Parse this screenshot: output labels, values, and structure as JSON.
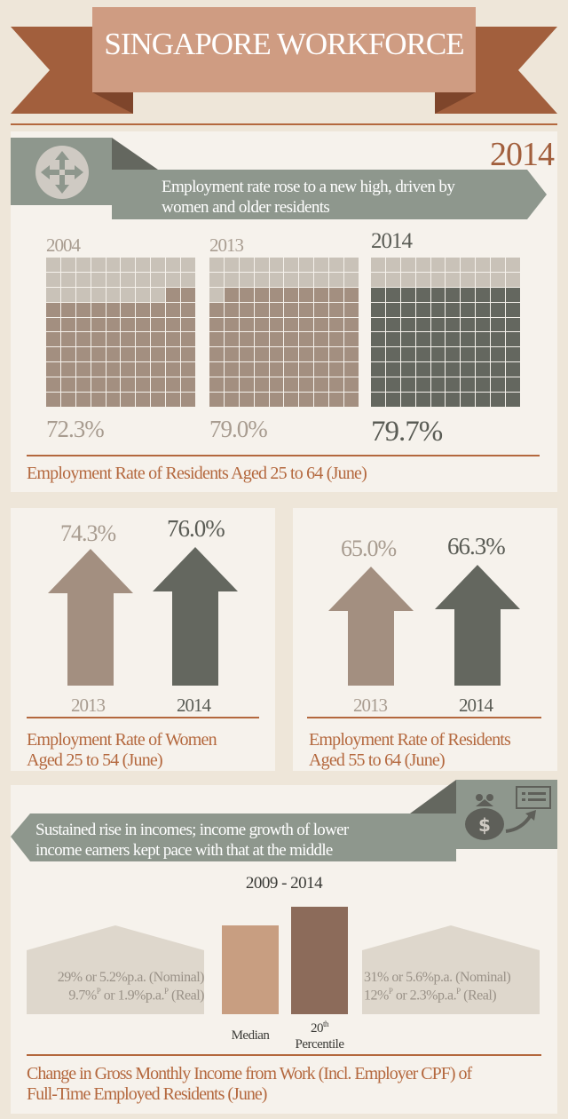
{
  "header": {
    "title": "SINGAPORE WORKFORCE",
    "year": "2014"
  },
  "colors": {
    "background": "#eee6d9",
    "panel": "#f6f2ec",
    "banner_main": "#cf9c82",
    "banner_dark": "#a25f3d",
    "rust": "#b4683e",
    "muted_brown": "#a38f80",
    "dark_gray": "#64675f",
    "sage": "#8e978d",
    "light_cell": "#c9c2b8"
  },
  "section1": {
    "icon": "arrows-move-icon",
    "headline_line1": "Employment rate rose to a new high, driven by",
    "headline_line2": "women and older residents",
    "grids": [
      {
        "year": "2004",
        "value_label": "72.3%",
        "value": 72.3
      },
      {
        "year": "2013",
        "value_label": "79.0%",
        "value": 79.0
      },
      {
        "year": "2014",
        "value_label": "79.7%",
        "value": 79.7
      }
    ],
    "caption": "Employment Rate of Residents Aged  25 to 64 (June)"
  },
  "women": {
    "bars": [
      {
        "year": "2013",
        "value_label": "74.3%",
        "value": 74.3
      },
      {
        "year": "2014",
        "value_label": "76.0%",
        "value": 76.0
      }
    ],
    "caption_line1": "Employment Rate of Women",
    "caption_line2": "Aged 25 to 54 (June)"
  },
  "older": {
    "bars": [
      {
        "year": "2013",
        "value_label": "65.0%",
        "value": 65.0
      },
      {
        "year": "2014",
        "value_label": "66.3%",
        "value": 66.3
      }
    ],
    "caption_line1": "Employment Rate of Residents",
    "caption_line2": "Aged 55 to 64 (June)"
  },
  "section2": {
    "icon": "money-bag-growth-icon",
    "headline_line1": "Sustained rise in incomes; income growth of lower",
    "headline_line2": "income earners kept pace with that at the middle",
    "period": "2009 - 2014",
    "median_label": "Median",
    "p20_label_num": "20",
    "p20_label_sup": "th",
    "p20_label_word": "Percentile",
    "left_line1": "29% or 5.2%p.a. (Nominal)",
    "left_line2_a": "9.7%",
    "left_line2_sup1": "P",
    "left_line2_b": " or 1.9%p.a.",
    "left_line2_sup2": "P",
    "left_line2_c": " (Real)",
    "right_line1": "31% or 5.6%p.a. (Nominal)",
    "right_line2_a": "12%",
    "right_line2_sup1": "P",
    "right_line2_b": " or 2.3%p.a.",
    "right_line2_sup2": "P",
    "right_line2_c": " (Real)",
    "caption_line1": "Change in Gross Monthly Income from Work (Incl. Employer CPF) of",
    "caption_line2": "Full-Time Employed Residents (June)"
  }
}
